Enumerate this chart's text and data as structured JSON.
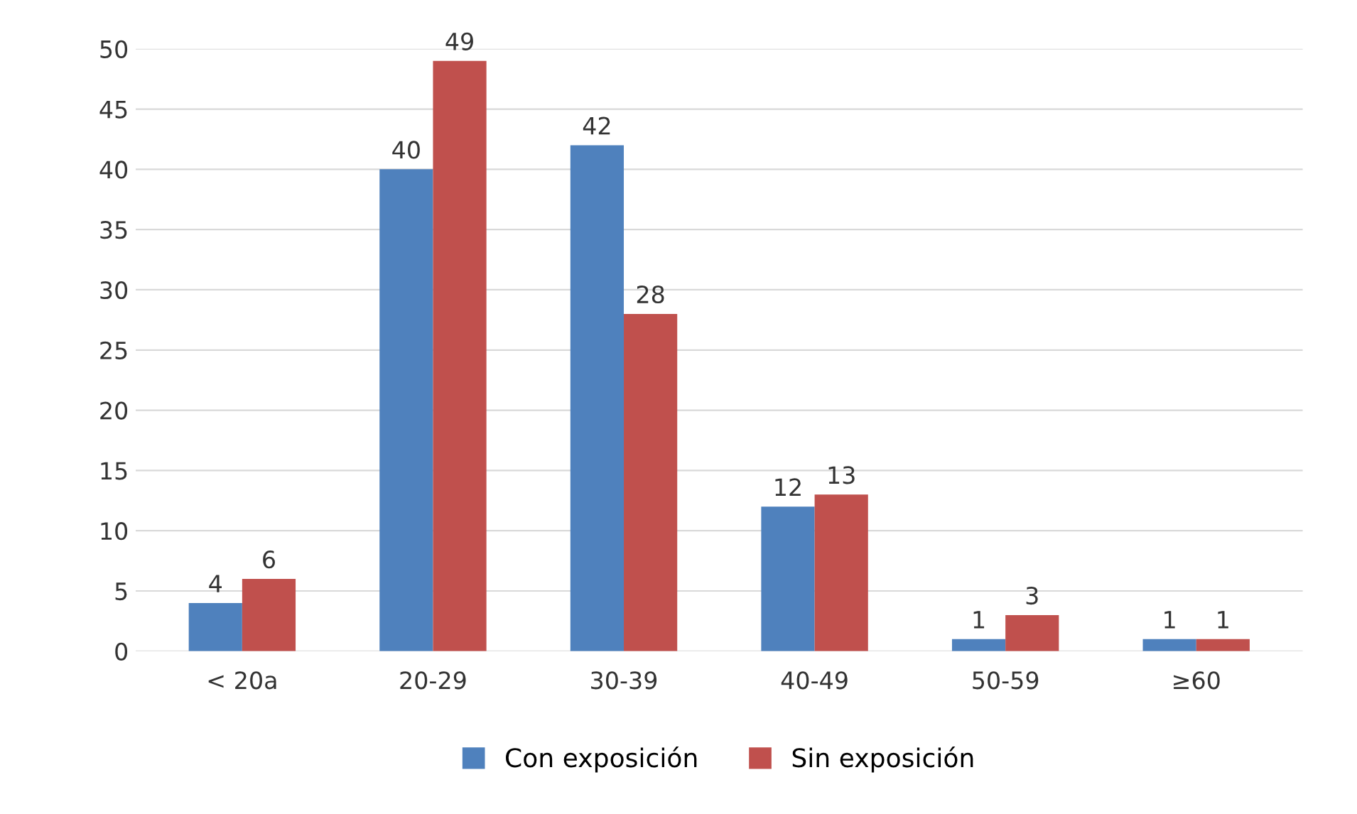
{
  "chart_data": {
    "type": "bar",
    "categories": [
      "< 20a",
      "20-29",
      "30-39",
      "40-49",
      "50-59",
      "≥60"
    ],
    "series": [
      {
        "name": "Con exposición",
        "color": "#4f81bd",
        "values": [
          4,
          40,
          42,
          12,
          1,
          1
        ]
      },
      {
        "name": "Sin exposición",
        "color": "#c0504d",
        "values": [
          6,
          49,
          28,
          13,
          3,
          1
        ]
      }
    ],
    "ylim": [
      0,
      50
    ],
    "yticks": [
      0,
      5,
      10,
      15,
      20,
      25,
      30,
      35,
      40,
      45,
      50
    ],
    "grid": "y",
    "legend": "bottom",
    "data_labels": true
  }
}
